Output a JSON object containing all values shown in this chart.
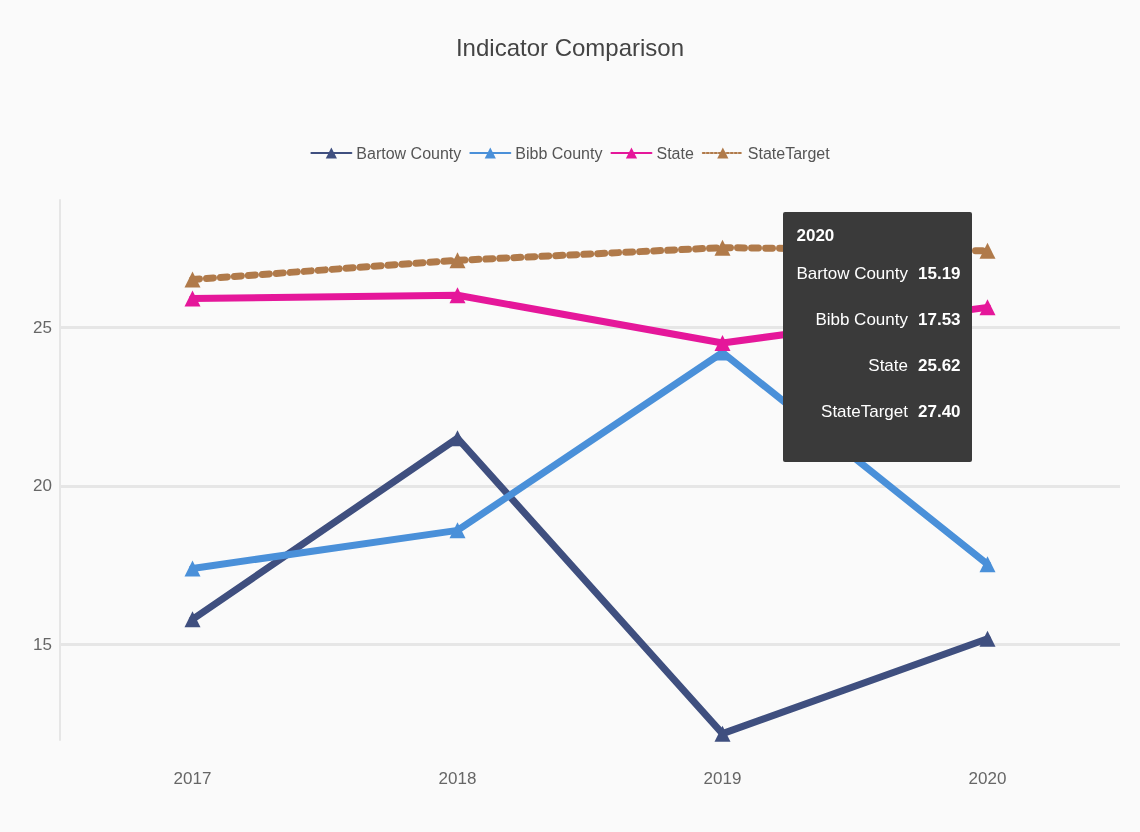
{
  "chart_data": {
    "type": "line",
    "title": "Indicator Comparison",
    "categories": [
      "2017",
      "2018",
      "2019",
      "2020"
    ],
    "series": [
      {
        "name": "Bartow County",
        "color": "#3f4f7f",
        "values": [
          15.8,
          21.5,
          12.2,
          15.19
        ]
      },
      {
        "name": "Bibb County",
        "color": "#4a90d9",
        "values": [
          17.4,
          18.6,
          24.2,
          17.53
        ]
      },
      {
        "name": "State",
        "color": "#e5179a",
        "values": [
          25.9,
          26.0,
          24.5,
          25.62
        ]
      },
      {
        "name": "StateTarget",
        "color": "#b07a4a",
        "line_style": "dotted",
        "values": [
          26.5,
          27.1,
          27.5,
          27.4
        ]
      }
    ],
    "annotations": [
      "2020",
      "15.19",
      "17.53",
      "25.62",
      "27.40"
    ],
    "ylim": [
      12,
      29
    ],
    "yticks": [
      15,
      20,
      25
    ],
    "grid": "y",
    "legend": "top",
    "marker": "triangle",
    "line_style": "solid"
  }
}
